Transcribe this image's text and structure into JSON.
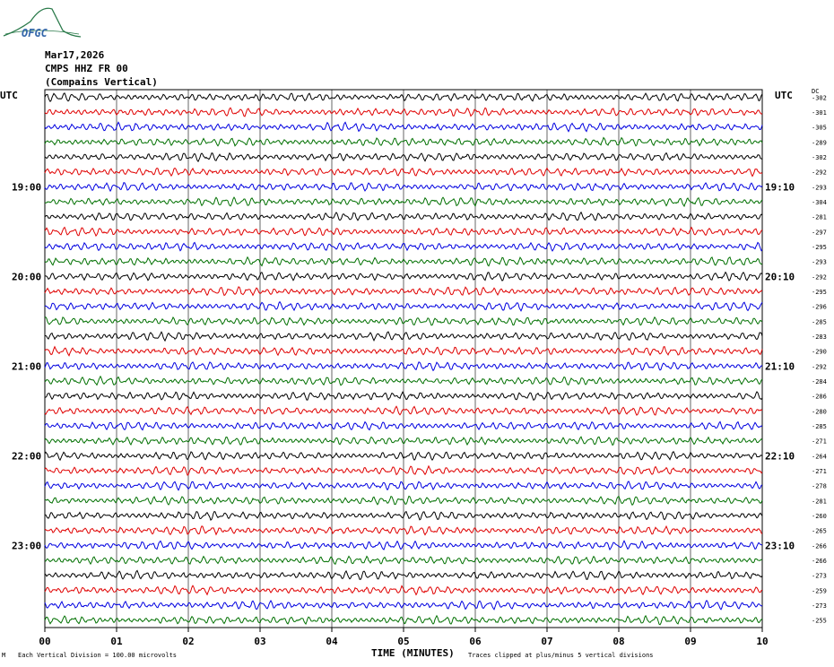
{
  "logo_text": "OFGC",
  "header": {
    "date": "Mar17,2026",
    "channel": "CMPS HHZ FR 00",
    "station_name": "(Compains Vertical)"
  },
  "left_tz": "UTC",
  "right_tz": "UTC",
  "dc_header": "DC",
  "footer": {
    "corner_mark": "M",
    "scale_note": "Each Vertical Division =  100.00 microvolts",
    "xlabel": "TIME (MINUTES)",
    "clip_note": "Traces clipped at plus/minus 5 vertical divisions"
  },
  "colors": {
    "trace_cycle": [
      "#000000",
      "#e00000",
      "#0000e0",
      "#007000"
    ],
    "logo": "#2a7a4a",
    "logo_text": "#3366aa"
  },
  "chart_data": {
    "type": "line",
    "title": "",
    "xlabel": "TIME (MINUTES)",
    "x_ticks": [
      "00",
      "01",
      "02",
      "03",
      "04",
      "05",
      "06",
      "07",
      "08",
      "09",
      "10"
    ],
    "xlim": [
      0,
      10
    ],
    "rows": 36,
    "left_hour_labels": [
      {
        "row": 6,
        "label": "19:00"
      },
      {
        "row": 12,
        "label": "20:00"
      },
      {
        "row": 18,
        "label": "21:00"
      },
      {
        "row": 24,
        "label": "22:00"
      },
      {
        "row": 30,
        "label": "23:00"
      }
    ],
    "right_hour_labels": [
      {
        "row": 6,
        "label": "19:10"
      },
      {
        "row": 12,
        "label": "20:10"
      },
      {
        "row": 18,
        "label": "21:10"
      },
      {
        "row": 24,
        "label": "22:10"
      },
      {
        "row": 30,
        "label": "23:10"
      }
    ],
    "dc_offsets": [
      "-302",
      "-301",
      "-305",
      "-289",
      "-302",
      "-292",
      "-293",
      "-304",
      "-281",
      "-297",
      "-295",
      "-293",
      "-292",
      "-295",
      "-296",
      "-285",
      "-283",
      "-290",
      "-292",
      "-284",
      "-286",
      "-280",
      "-285",
      "-271",
      "-264",
      "-271",
      "-278",
      "-281",
      "-260",
      "-265",
      "-266",
      "-266",
      "-273",
      "-259",
      "-273",
      "-255"
    ],
    "grid": true,
    "clip_divisions": 5
  }
}
